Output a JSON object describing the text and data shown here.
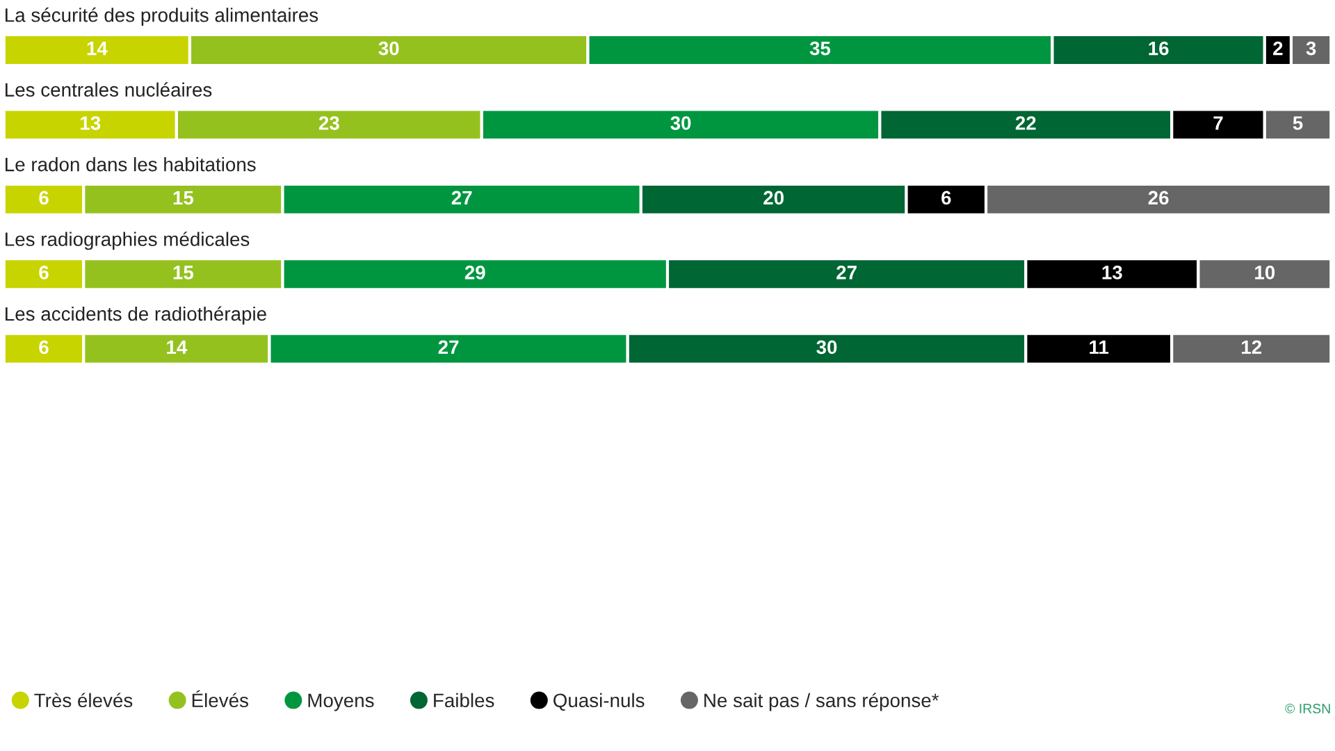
{
  "chart_data": {
    "type": "bar",
    "orientation": "horizontal",
    "stacked": true,
    "data_labels": true,
    "legend": "bottom",
    "categories": [
      "La sécurité des produits alimentaires",
      "Les centrales nucléaires",
      "Le radon dans les habitations",
      "Les radiographies médicales",
      "Les accidents de radiothérapie"
    ],
    "series": [
      {
        "name": "Très élevés",
        "color": "#c8d400",
        "values": [
          14,
          13,
          6,
          6,
          6
        ]
      },
      {
        "name": "Élevés",
        "color": "#95c11f",
        "values": [
          30,
          23,
          15,
          15,
          14
        ]
      },
      {
        "name": "Moyens",
        "color": "#009640",
        "values": [
          35,
          30,
          27,
          29,
          27
        ]
      },
      {
        "name": "Faibles",
        "color": "#006633",
        "values": [
          16,
          22,
          20,
          27,
          30
        ]
      },
      {
        "name": "Quasi-nuls",
        "color": "#000000",
        "values": [
          2,
          7,
          6,
          13,
          11
        ]
      },
      {
        "name": "Ne sait pas / sans réponse*",
        "color": "#666666",
        "values": [
          3,
          5,
          26,
          10,
          12
        ]
      }
    ],
    "annotations": [
      "© IRSN"
    ]
  }
}
